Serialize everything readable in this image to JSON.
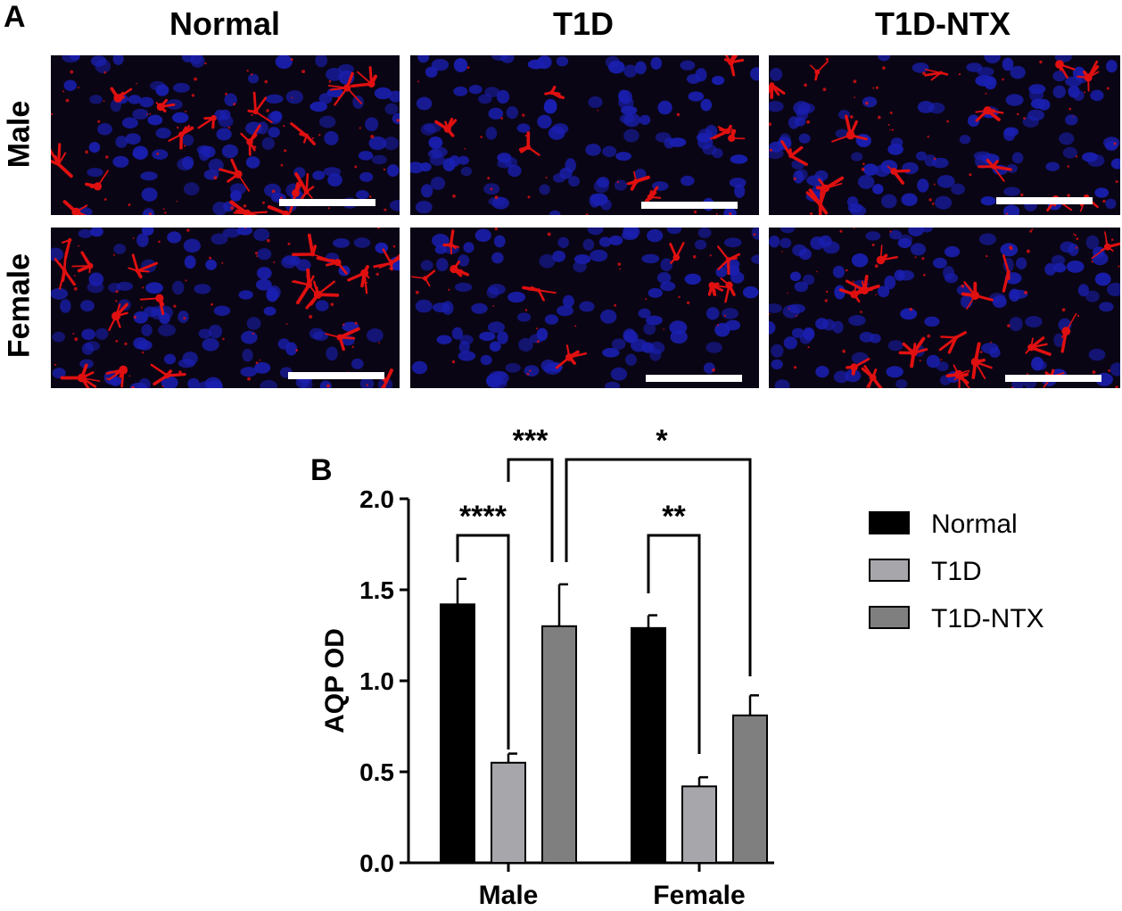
{
  "panel_a": {
    "letter": "A",
    "columns": [
      "Normal",
      "T1D",
      "T1D-NTX"
    ],
    "rows": [
      "Male",
      "Female"
    ]
  },
  "panel_b": {
    "letter": "B"
  },
  "colors": {
    "micrograph_background": "#0a0515",
    "nuclei": "#1a1fb0",
    "aqp_stain": "#e01010",
    "scale_bar": "#ffffff"
  },
  "chart_data": {
    "type": "bar",
    "categories": [
      "Male",
      "Female"
    ],
    "series": [
      {
        "name": "Normal",
        "values": [
          1.42,
          1.29
        ],
        "errors": [
          0.14,
          0.07
        ],
        "color": "#000000"
      },
      {
        "name": "T1D",
        "values": [
          0.55,
          0.42
        ],
        "errors": [
          0.05,
          0.05
        ],
        "color": "#a6a6ab"
      },
      {
        "name": "T1D-NTX",
        "values": [
          1.3,
          0.81
        ],
        "errors": [
          0.23,
          0.11
        ],
        "color": "#7f7f7f"
      }
    ],
    "ylabel": "AQP OD",
    "xlabel": "",
    "ylim": [
      0,
      2.0
    ],
    "yticks": [
      "0.0",
      "0.5",
      "1.0",
      "1.5",
      "2.0"
    ],
    "legend_position": "right",
    "significance": [
      {
        "label": "****",
        "from": "Male Normal",
        "to": "Male T1D"
      },
      {
        "label": "***",
        "from": "Male T1D",
        "to": "Male T1D-NTX"
      },
      {
        "label": "*",
        "from": "Male T1D-NTX",
        "to": "Female T1D-NTX"
      },
      {
        "label": "**",
        "from": "Female Normal",
        "to": "Female T1D"
      }
    ]
  }
}
